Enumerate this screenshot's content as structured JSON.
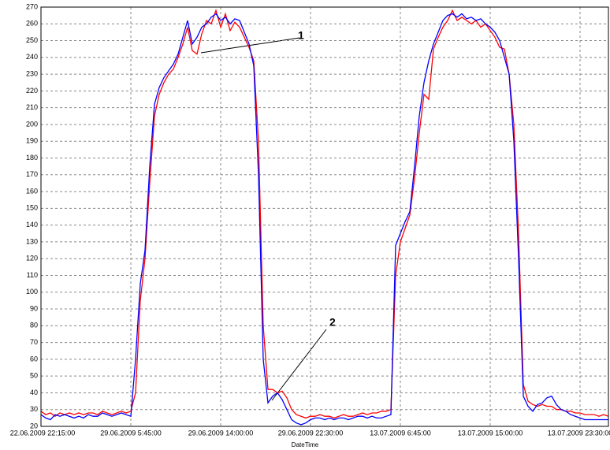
{
  "chart_data": {
    "type": "line",
    "x_label": "DateTime",
    "categories": [
      "22.06.2009 22:15:00",
      null,
      null,
      null,
      null,
      null,
      null,
      null,
      null,
      null,
      null,
      null,
      null,
      null,
      null,
      null,
      null,
      null,
      null,
      "29.06.2009 5:45:00",
      null,
      null,
      null,
      null,
      null,
      null,
      null,
      null,
      null,
      null,
      null,
      null,
      null,
      null,
      null,
      null,
      null,
      null,
      "29.06.2009 14:00:00",
      null,
      null,
      null,
      null,
      null,
      null,
      null,
      null,
      null,
      null,
      null,
      null,
      null,
      null,
      null,
      null,
      null,
      null,
      "29.06.2009 22:30:00",
      null,
      null,
      null,
      null,
      null,
      null,
      null,
      null,
      null,
      null,
      null,
      null,
      null,
      null,
      null,
      null,
      null,
      null,
      "13.07.2009 6:45:00",
      null,
      null,
      null,
      null,
      null,
      null,
      null,
      null,
      null,
      null,
      null,
      null,
      null,
      null,
      null,
      null,
      null,
      null,
      "13.07.2009 15:00:00",
      null,
      null,
      null,
      null,
      null,
      null,
      null,
      null,
      null,
      null,
      null,
      null,
      null,
      null,
      null,
      null,
      null,
      null,
      "13.07.2009 23:30:00",
      null,
      null,
      null,
      null,
      null,
      null
    ],
    "series": [
      {
        "name": "1",
        "color": "#ff0000",
        "values": [
          29,
          27,
          28,
          26,
          28,
          27,
          28,
          27,
          28,
          27,
          28,
          28,
          27,
          29,
          28,
          27,
          28,
          29,
          28,
          29,
          40,
          95,
          120,
          165,
          205,
          218,
          225,
          230,
          233,
          240,
          248,
          258,
          244,
          242,
          254,
          262,
          260,
          268,
          258,
          266,
          256,
          261,
          258,
          252,
          246,
          238,
          190,
          80,
          42,
          42,
          40,
          41,
          37,
          30,
          27,
          26,
          25,
          26,
          26,
          27,
          26,
          26,
          25,
          26,
          27,
          26,
          26,
          27,
          28,
          27,
          28,
          28,
          29,
          29,
          30,
          110,
          130,
          138,
          146,
          168,
          195,
          218,
          215,
          245,
          252,
          258,
          262,
          268,
          262,
          264,
          262,
          260,
          262,
          258,
          260,
          256,
          252,
          246,
          245,
          230,
          200,
          135,
          45,
          35,
          33,
          32,
          33,
          32,
          32,
          30,
          30,
          29,
          29,
          28,
          28,
          27,
          27,
          27,
          26,
          27,
          26
        ]
      },
      {
        "name": "2",
        "color": "#0000ff",
        "values": [
          27,
          25,
          24,
          27,
          26,
          27,
          26,
          25,
          26,
          25,
          27,
          26,
          26,
          28,
          27,
          26,
          27,
          28,
          27,
          26,
          60,
          105,
          125,
          175,
          212,
          222,
          228,
          232,
          236,
          242,
          252,
          262,
          248,
          252,
          258,
          260,
          264,
          266,
          262,
          264,
          260,
          263,
          262,
          255,
          248,
          235,
          170,
          60,
          34,
          38,
          40,
          36,
          30,
          24,
          22,
          21,
          22,
          24,
          25,
          25,
          24,
          25,
          24,
          25,
          25,
          24,
          25,
          26,
          26,
          25,
          26,
          25,
          25,
          26,
          27,
          128,
          135,
          142,
          148,
          175,
          205,
          225,
          238,
          248,
          255,
          262,
          265,
          266,
          264,
          266,
          263,
          264,
          262,
          263,
          260,
          258,
          255,
          250,
          240,
          230,
          190,
          120,
          38,
          32,
          29,
          33,
          34,
          37,
          38,
          33,
          30,
          29,
          27,
          26,
          25,
          24,
          24,
          24,
          24,
          24,
          24
        ]
      }
    ],
    "annotations": [
      "1",
      "2"
    ],
    "ylim": [
      20,
      270
    ],
    "yticks": [
      20,
      30,
      40,
      50,
      60,
      70,
      80,
      90,
      100,
      110,
      120,
      130,
      140,
      150,
      160,
      170,
      180,
      190,
      200,
      210,
      220,
      230,
      240,
      250,
      260,
      270
    ],
    "grid": true
  }
}
